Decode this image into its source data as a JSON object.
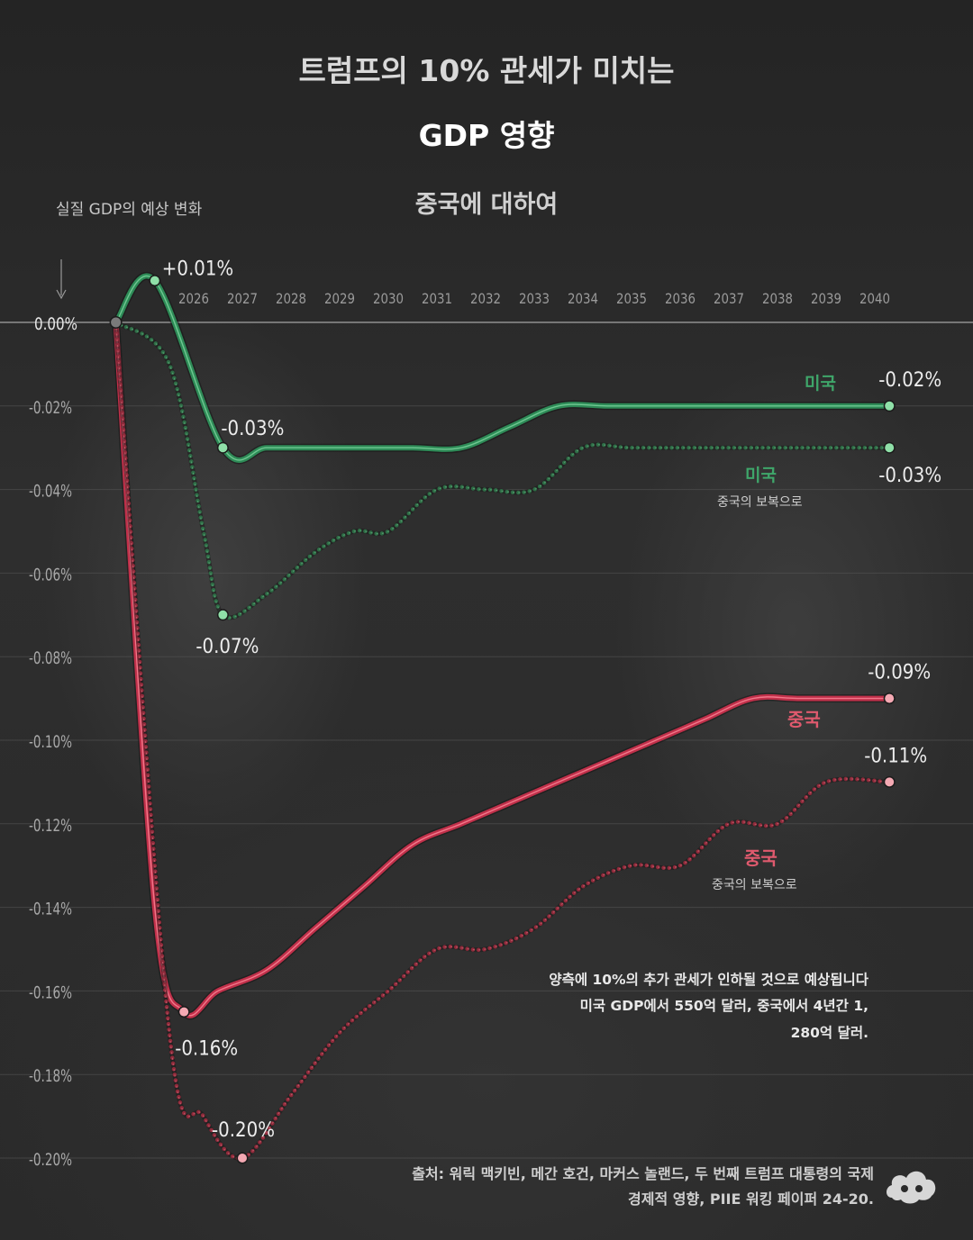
{
  "header": {
    "title_line1": "트럼프의 10% 관세가 미치는",
    "title_line2": "GDP 영향",
    "subtitle": "중국에 대하여",
    "y_axis_label": "실질 GDP의 예상 변화"
  },
  "chart_data": {
    "type": "line",
    "title": "트럼프의 10% 관세가 미치는 GDP 영향",
    "subtitle": "중국에 대하여",
    "ylabel": "실질 GDP의 예상 변화",
    "x_ticks": [
      "2026",
      "2027",
      "2028",
      "2029",
      "2030",
      "2031",
      "2032",
      "2033",
      "2034",
      "2035",
      "2036",
      "2037",
      "2038",
      "2039",
      "2040"
    ],
    "y_ticks": [
      "0.00%",
      "-0.02%",
      "-0.04%",
      "-0.06%",
      "-0.08%",
      "-0.10%",
      "-0.12%",
      "-0.14%",
      "-0.16%",
      "-0.18%",
      "-0.20%"
    ],
    "ylim": [
      -0.2,
      0.0
    ],
    "series": [
      {
        "name": "미국",
        "subtitle": "",
        "style": "solid",
        "color": "#2e8b57",
        "points": [
          [
            2024.4,
            0.0
          ],
          [
            2025.2,
            0.01
          ],
          [
            2026.6,
            -0.03
          ],
          [
            2027.5,
            -0.03
          ],
          [
            2028.5,
            -0.03
          ],
          [
            2029.5,
            -0.03
          ],
          [
            2030.5,
            -0.03
          ],
          [
            2031.5,
            -0.03
          ],
          [
            2032.5,
            -0.025
          ],
          [
            2033.5,
            -0.02
          ],
          [
            2034.5,
            -0.02
          ],
          [
            2035.5,
            -0.02
          ],
          [
            2036.5,
            -0.02
          ],
          [
            2037.5,
            -0.02
          ],
          [
            2038.5,
            -0.02
          ],
          [
            2039.5,
            -0.02
          ],
          [
            2040.3,
            -0.02
          ]
        ],
        "labels": [
          {
            "x": 2025.2,
            "y": 0.01,
            "text": "+0.01%"
          },
          {
            "x": 2026.6,
            "y": -0.03,
            "text": "-0.03%"
          },
          {
            "x": 2040.3,
            "y": -0.02,
            "text": "-0.02%"
          }
        ]
      },
      {
        "name": "미국",
        "subtitle": "중국의 보복으로",
        "style": "dotted",
        "color": "#2e6b45",
        "points": [
          [
            2024.4,
            0.0
          ],
          [
            2025.5,
            -0.01
          ],
          [
            2026.2,
            -0.05
          ],
          [
            2026.6,
            -0.07
          ],
          [
            2027.5,
            -0.065
          ],
          [
            2028.5,
            -0.055
          ],
          [
            2029.3,
            -0.05
          ],
          [
            2030.0,
            -0.05
          ],
          [
            2031.0,
            -0.04
          ],
          [
            2032.0,
            -0.04
          ],
          [
            2033.0,
            -0.04
          ],
          [
            2034.0,
            -0.03
          ],
          [
            2035.0,
            -0.03
          ],
          [
            2036.5,
            -0.03
          ],
          [
            2038.5,
            -0.03
          ],
          [
            2040.3,
            -0.03
          ]
        ],
        "labels": [
          {
            "x": 2026.6,
            "y": -0.07,
            "text": "-0.07%"
          },
          {
            "x": 2040.3,
            "y": -0.03,
            "text": "-0.03%"
          }
        ]
      },
      {
        "name": "중국",
        "subtitle": "",
        "style": "solid",
        "color": "#c0304a",
        "points": [
          [
            2024.4,
            0.0
          ],
          [
            2025.2,
            -0.14
          ],
          [
            2025.8,
            -0.165
          ],
          [
            2026.5,
            -0.16
          ],
          [
            2027.5,
            -0.155
          ],
          [
            2028.5,
            -0.145
          ],
          [
            2029.5,
            -0.135
          ],
          [
            2030.5,
            -0.125
          ],
          [
            2031.5,
            -0.12
          ],
          [
            2032.5,
            -0.115
          ],
          [
            2033.5,
            -0.11
          ],
          [
            2034.5,
            -0.105
          ],
          [
            2035.5,
            -0.1
          ],
          [
            2036.5,
            -0.095
          ],
          [
            2037.5,
            -0.09
          ],
          [
            2038.5,
            -0.09
          ],
          [
            2040.3,
            -0.09
          ]
        ],
        "labels": [
          {
            "x": 2025.8,
            "y": -0.165,
            "text": "-0.16%"
          },
          {
            "x": 2040.3,
            "y": -0.09,
            "text": "-0.09%"
          }
        ]
      },
      {
        "name": "중국",
        "subtitle": "중국의 보복으로",
        "style": "dotted",
        "color": "#8e2a3a",
        "points": [
          [
            2024.4,
            0.0
          ],
          [
            2025.5,
            -0.17
          ],
          [
            2026.2,
            -0.19
          ],
          [
            2027.0,
            -0.2
          ],
          [
            2028.0,
            -0.185
          ],
          [
            2029.0,
            -0.17
          ],
          [
            2030.0,
            -0.16
          ],
          [
            2031.0,
            -0.15
          ],
          [
            2032.0,
            -0.15
          ],
          [
            2033.0,
            -0.145
          ],
          [
            2034.0,
            -0.135
          ],
          [
            2035.0,
            -0.13
          ],
          [
            2036.0,
            -0.13
          ],
          [
            2037.0,
            -0.12
          ],
          [
            2038.0,
            -0.12
          ],
          [
            2039.0,
            -0.11
          ],
          [
            2040.3,
            -0.11
          ]
        ],
        "labels": [
          {
            "x": 2027.0,
            "y": -0.2,
            "text": "-0.20%"
          },
          {
            "x": 2040.3,
            "y": -0.11,
            "text": "-0.11%"
          }
        ]
      }
    ],
    "legend_placement": "inline-right",
    "grid": true
  },
  "annotations": {
    "note_line1": "양측에 10%의 추가 관세가 인하될 것으로 예상됩니다",
    "note_line2": "미국 GDP에서 550억 달러, 중국에서 4년간 1,",
    "note_line3": "280억 달러.",
    "source_line1": "출처: 워릭 맥키빈, 메간 호건, 마커스 놀랜드, 두 번째 트럼프 대통령의 국제",
    "source_line2": "경제적 영향, PIIE 워킹 페이퍼 24-20."
  },
  "colors": {
    "us_solid": "#2e8b57",
    "us_dotted": "#2e6b45",
    "china_solid": "#c0304a",
    "china_dotted": "#8e2a3a",
    "us_label": "#3fa66a",
    "china_label": "#e05a6e"
  },
  "icons": {
    "logo": "cloud-logo-icon"
  }
}
